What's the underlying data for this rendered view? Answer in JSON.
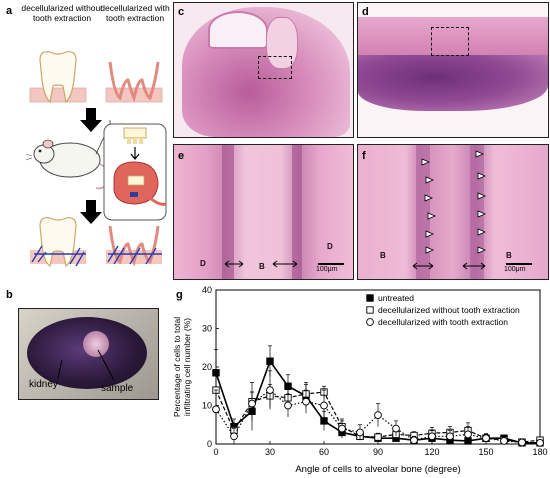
{
  "panel_letters": {
    "a": "a",
    "b": "b",
    "c": "c",
    "d": "d",
    "e": "e",
    "f": "f",
    "g": "g"
  },
  "schematic": {
    "left_header": "decellularized without tooth extraction",
    "right_header": "decellularized with tooth extraction"
  },
  "photo": {
    "kidney_label": "kidney",
    "sample_label": "sample"
  },
  "histology": {
    "e_labels": [
      "D",
      "B",
      "D"
    ],
    "f_labels": [
      "B",
      "B"
    ],
    "scale_bar": "100μm"
  },
  "colors": {
    "untreated": "#000000",
    "without": "#000000",
    "with": "#000000",
    "he_pink": "#e8a7c6",
    "he_purple": "#8b3a7d"
  },
  "chart_data": {
    "type": "line",
    "xlabel": "Angle of cells to alveolar bone (degree)",
    "ylabel": "Percentage of cells to total infiltrating cell number (%)",
    "xlim": [
      0,
      180
    ],
    "ylim": [
      0,
      40
    ],
    "xticks": [
      0,
      30,
      60,
      90,
      120,
      150,
      180
    ],
    "yticks": [
      0,
      10,
      20,
      30,
      40
    ],
    "legend_position": "top-right",
    "x": [
      0,
      10,
      20,
      30,
      40,
      50,
      60,
      70,
      80,
      90,
      100,
      110,
      120,
      130,
      140,
      150,
      160,
      170,
      180
    ],
    "series": [
      {
        "name": "untreated",
        "marker": "filled-square",
        "line": "solid",
        "values": [
          18.5,
          4.5,
          8.5,
          21.5,
          15,
          12.5,
          6,
          3,
          2,
          1.5,
          1.5,
          1,
          1.5,
          1,
          0.8,
          1.5,
          1.5,
          0.3,
          0.3
        ],
        "errors": [
          6,
          2,
          5,
          4,
          3,
          3,
          2.5,
          1.5,
          1,
          0.8,
          0.8,
          0.6,
          0.8,
          0.6,
          0.5,
          0.8,
          0.8,
          0.2,
          0.2
        ]
      },
      {
        "name": "decellularized without tooth extraction",
        "marker": "open-square",
        "line": "dashed",
        "values": [
          14,
          3.5,
          11,
          12.5,
          12,
          13,
          13.5,
          4.5,
          2,
          1.8,
          2.5,
          2.2,
          2.8,
          3,
          3.5,
          1.5,
          1,
          0.5,
          1
        ],
        "errors": [
          4,
          1.5,
          5,
          3,
          3,
          3,
          1.5,
          2,
          1,
          1,
          1,
          1,
          1.5,
          1.5,
          2,
          1,
          0.8,
          0.4,
          0.6
        ]
      },
      {
        "name": "decellularized with tooth extraction",
        "marker": "open-circle",
        "line": "dotted",
        "values": [
          9,
          2,
          10.5,
          14,
          10,
          11,
          10,
          4,
          3,
          7.5,
          4,
          1,
          2,
          2,
          2.5,
          1.5,
          0.8,
          0.4,
          0.3
        ],
        "errors": [
          5,
          2,
          3,
          5,
          3,
          3,
          4,
          2,
          2,
          3,
          2,
          1,
          1.5,
          1.5,
          2,
          1.2,
          0.6,
          0.3,
          0.2
        ]
      }
    ]
  }
}
